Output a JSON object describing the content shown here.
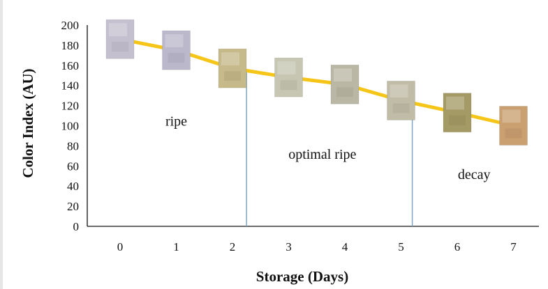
{
  "chart_data": {
    "type": "line",
    "title": "",
    "xlabel": "Storage (Days)",
    "ylabel": "Color Index (AU)",
    "x": [
      0,
      1,
      2,
      3,
      4,
      5,
      6,
      7
    ],
    "xticks": [
      "0",
      "1",
      "2",
      "3",
      "4",
      "5",
      "6",
      "7"
    ],
    "ylim": [
      0,
      200
    ],
    "yticks": [
      "0",
      "20",
      "40",
      "60",
      "80",
      "100",
      "120",
      "140",
      "160",
      "180",
      "200"
    ],
    "grid": false,
    "legend": "none",
    "series": [
      {
        "values": [
          186,
          175,
          157,
          148,
          141,
          125,
          113,
          100
        ]
      }
    ],
    "line_color": "#f5c518",
    "boundary_color": "#7fa6c4",
    "swatch_colors": [
      "#c4c0d0",
      "#bcb8cc",
      "#c6b98a",
      "#c6c6b2",
      "#bab8a4",
      "#c0bca6",
      "#a49a66",
      "#caa070"
    ],
    "region_boundaries": [
      2.25,
      5.2
    ],
    "regions": [
      {
        "label": "ripe",
        "x": 1,
        "y": 100
      },
      {
        "label": "optimal ripe",
        "x": 3.6,
        "y": 67
      },
      {
        "label": "decay",
        "x": 6.3,
        "y": 47
      }
    ]
  }
}
